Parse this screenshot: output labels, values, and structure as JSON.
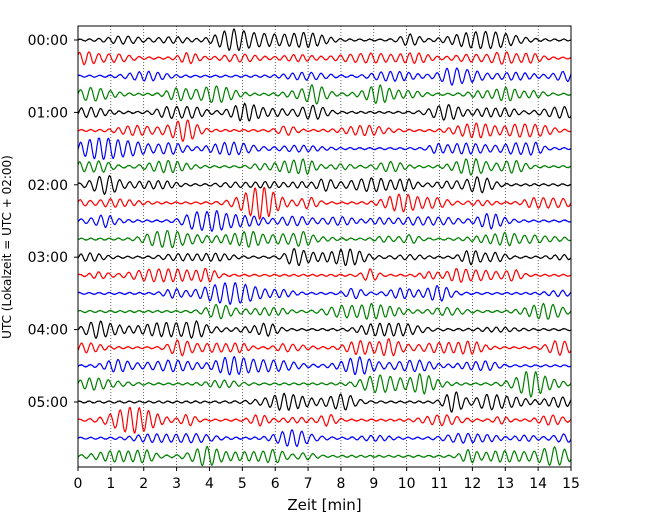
{
  "chart_data": {
    "type": "line",
    "title": "",
    "xlabel": "Zeit  [min]",
    "ylabel": "UTC (Lokalzeit = UTC + 02:00)",
    "xlim": [
      0,
      15
    ],
    "x_ticks": [
      "0",
      "1",
      "2",
      "3",
      "4",
      "5",
      "6",
      "7",
      "8",
      "9",
      "10",
      "11",
      "12",
      "13",
      "14",
      "15"
    ],
    "y_ticks": [
      "00:00",
      "01:00",
      "02:00",
      "03:00",
      "04:00",
      "05:00"
    ],
    "grid": "x-dotted",
    "trace_colors": [
      "#000000",
      "#ff0000",
      "#0000ff",
      "#008000"
    ],
    "traces_per_hour": 4,
    "trace_count": 24,
    "trace_start_times": [
      "00:00",
      "00:15",
      "00:30",
      "00:45",
      "01:00",
      "01:15",
      "01:30",
      "01:45",
      "02:00",
      "02:15",
      "02:30",
      "02:45",
      "03:00",
      "03:15",
      "03:30",
      "03:45",
      "04:00",
      "04:15",
      "04:30",
      "04:45",
      "05:00",
      "05:15",
      "05:30",
      "05:45"
    ]
  }
}
